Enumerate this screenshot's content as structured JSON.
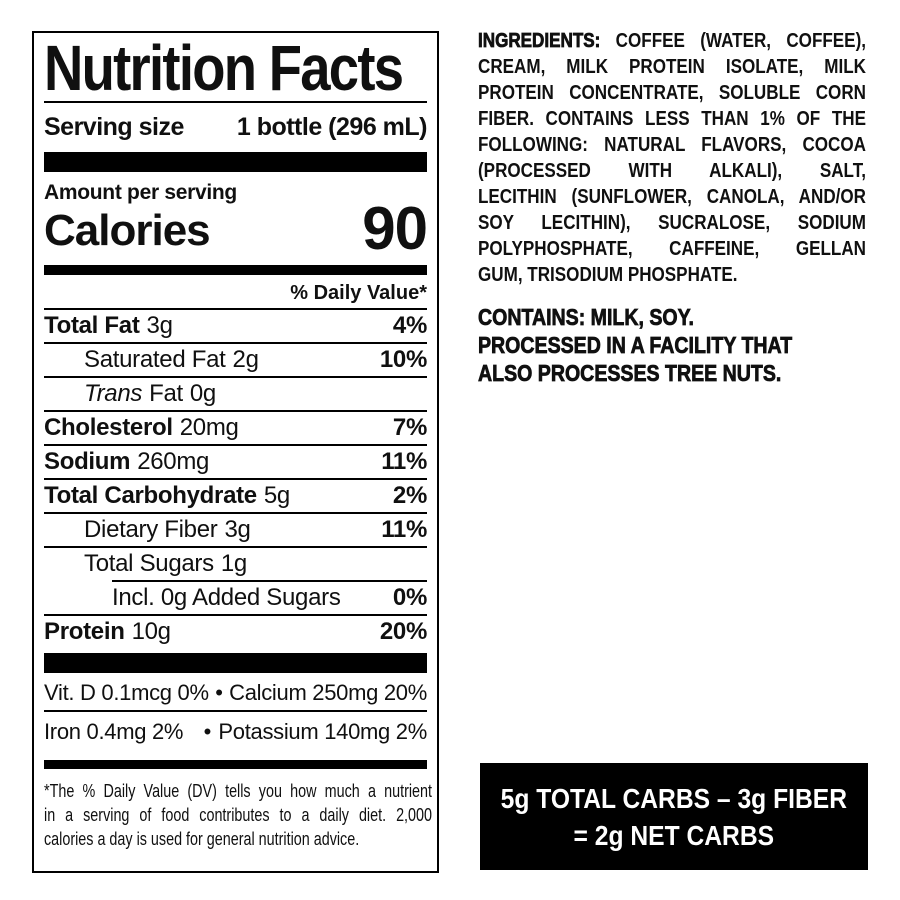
{
  "page": {
    "background": "#ffffff",
    "text_color": "#101010"
  },
  "nutrition_label": {
    "title": "Nutrition Facts",
    "serving_size": {
      "label": "Serving size",
      "value": "1 bottle (296 mL)"
    },
    "amount_per_serving": "Amount per serving",
    "calories": {
      "label": "Calories",
      "value": "90"
    },
    "daily_value_header": "% Daily Value*",
    "bullet": "•",
    "rows": [
      {
        "name": "Total Fat",
        "amount": "3g",
        "dv": "4%"
      },
      {
        "name": "Saturated Fat",
        "amount": "2g",
        "dv": "10%"
      },
      {
        "name_italic": "Trans",
        "name": "Fat",
        "amount": "0g",
        "dv": ""
      },
      {
        "name": "Cholesterol",
        "amount": "20mg",
        "dv": "7%"
      },
      {
        "name": "Sodium",
        "amount": "260mg",
        "dv": "11%"
      },
      {
        "name": "Total Carbohydrate",
        "amount": "5g",
        "dv": "2%"
      },
      {
        "name": "Dietary Fiber",
        "amount": "3g",
        "dv": "11%"
      },
      {
        "name": "Total Sugars",
        "amount": "1g",
        "dv": ""
      },
      {
        "name": "Incl. 0g Added Sugars",
        "amount": "",
        "dv": "0%"
      },
      {
        "name": "Protein",
        "amount": "10g",
        "dv": "20%"
      }
    ],
    "micronutrients": [
      {
        "left": "Vit. D 0.1mcg 0%",
        "right": "Calcium 250mg 20%"
      },
      {
        "left": "Iron 0.4mg 2%",
        "right": "Potassium 140mg 2%"
      }
    ],
    "footnote_lines": [
      "*The % Daily Value (DV) tells you how much a nutrient",
      "in a serving of food contributes to a daily diet. 2,000",
      "calories a day is used for general nutrition advice."
    ]
  },
  "ingredients_panel": {
    "heading": "INGREDIENTS:",
    "lines": [
      "COFFEE (WATER, COFFEE),",
      "CREAM, MILK PROTEIN ISOLATE, MILK",
      "PROTEIN CONCENTRATE, SOLUBLE CORN",
      "FIBER. CONTAINS LESS THAN 1% OF THE",
      "FOLLOWING: NATURAL FLAVORS, COCOA",
      "(PROCESSED WITH ALKALI), SALT,",
      "LECITHIN (SUNFLOWER, CANOLA, AND/OR",
      "SOY LECITHIN), SUCRALOSE, SODIUM",
      "POLYPHOSPHATE, CAFFEINE, GELLAN",
      "GUM, TRISODIUM PHOSPHATE."
    ],
    "allergen_lines": [
      "CONTAINS: MILK, SOY.",
      "PROCESSED IN A FACILITY THAT",
      "ALSO PROCESSES TREE NUTS."
    ]
  },
  "net_carbs_box": {
    "background": "#000000",
    "text_color": "#ffffff",
    "line1": "5g TOTAL CARBS – 3g FIBER",
    "line2": "= 2g NET CARBS"
  }
}
